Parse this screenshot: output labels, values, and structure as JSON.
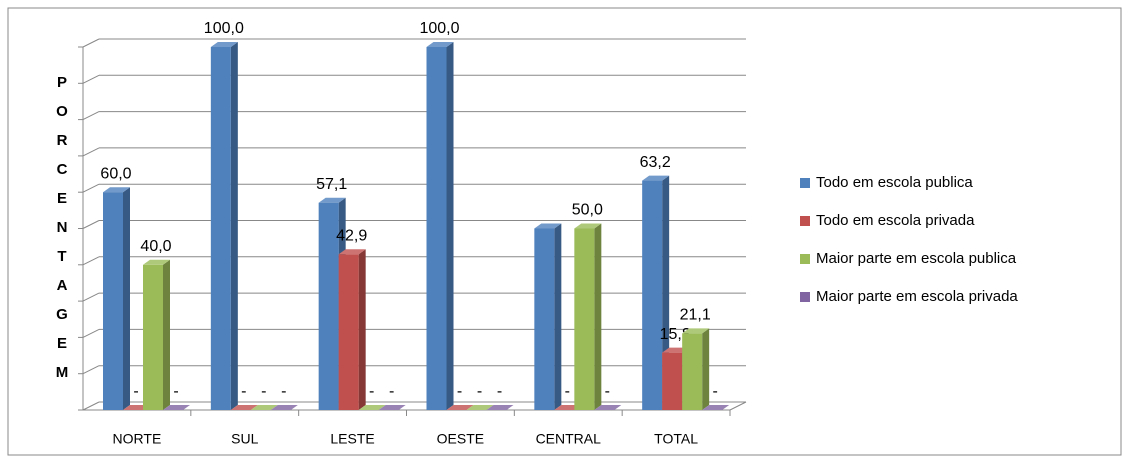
{
  "chart_data": {
    "type": "bar3d",
    "y_label": "PORCENTAGEM",
    "categories": [
      "NORTE",
      "SUL",
      "LESTE",
      "OESTE",
      "CENTRAL",
      "TOTAL"
    ],
    "series": [
      {
        "name": "Todo em escola publica",
        "color": "#4f81bd",
        "values": [
          60,
          100,
          57.1,
          100,
          50,
          63.2
        ],
        "value_labels": [
          "60,0",
          "100,0",
          "57,1",
          "100,0",
          null,
          "63,2"
        ]
      },
      {
        "name": "Todo em escola privada",
        "color": "#c0504d",
        "values": [
          0,
          0,
          42.9,
          0,
          0,
          15.8
        ],
        "value_labels": [
          "-",
          "-",
          "42,9",
          "-",
          "-",
          "15,8"
        ]
      },
      {
        "name": "Maior parte em escola publica",
        "color": "#9bbb59",
        "values": [
          40,
          0,
          0,
          0,
          50,
          21.1
        ],
        "value_labels": [
          "40,0",
          "-",
          "-",
          "-",
          "50,0",
          "21,1"
        ]
      },
      {
        "name": "Maior parte em escola privada",
        "color": "#8064a2",
        "values": [
          0,
          0,
          0,
          0,
          0,
          0
        ],
        "value_labels": [
          "-",
          "-",
          "-",
          "-",
          "-",
          "-"
        ]
      }
    ],
    "ylim": [
      0,
      100
    ],
    "yticks": [
      0,
      10,
      20,
      30,
      40,
      50,
      60,
      70,
      80,
      90,
      100
    ],
    "grid": true,
    "legend": "right"
  }
}
